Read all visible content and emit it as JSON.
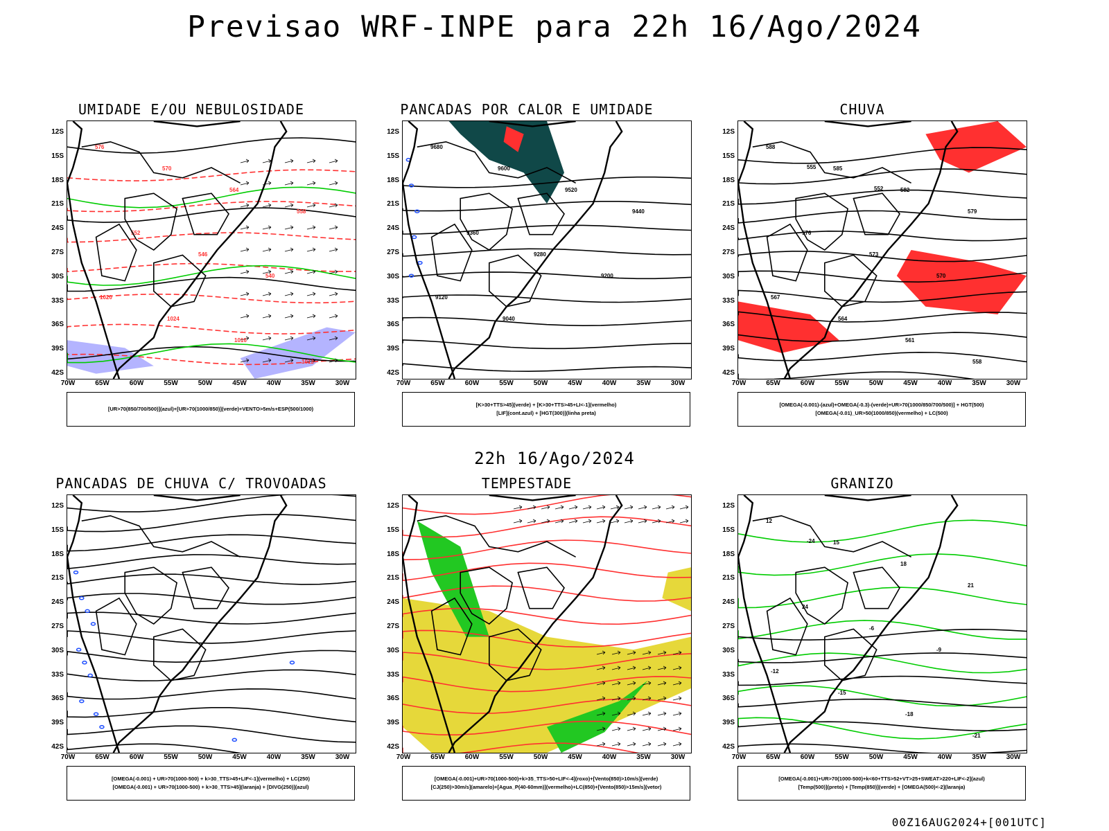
{
  "title": "Previsao WRF-INPE  para 22h 16/Ago/2024",
  "mid_label": "22h 16/Ago/2024",
  "footer": "00Z16AUG2024+[001UTC]",
  "lat_labels": [
    "12S",
    "15S",
    "18S",
    "21S",
    "24S",
    "27S",
    "30S",
    "33S",
    "36S",
    "39S",
    "42S"
  ],
  "lon_labels": [
    "70W",
    "65W",
    "60W",
    "55W",
    "50W",
    "45W",
    "40W",
    "35W",
    "30W"
  ],
  "colors": {
    "contour_red": "#ff3030",
    "contour_green": "#00cc00",
    "shade_blue": "#b4b4ff",
    "shade_dark": "#104848",
    "shade_yellow": "#e6d83a",
    "shade_green": "#22c822",
    "streamline": "#000000",
    "dot_blue": "#2050ff"
  },
  "panels": [
    {
      "title": "UMIDADE E/OU NEBULOSIDADE",
      "legend": [
        "[UR>70(850/700/500)](azul)+[UR>70(1000/850)](verde)+VENTO>5m/s+ESP(500/1000)"
      ],
      "contour_labels": [
        "576",
        "570",
        "564",
        "558",
        "552",
        "546",
        "540",
        "1020",
        "1024",
        "1016",
        "1012"
      ]
    },
    {
      "title": "PANCADAS POR CALOR E UMIDADE",
      "legend": [
        "[K>30+TTS>45](verde) + [K>30+TTS>45+LI<-1](vermelho)",
        "[LIF](cont.azul) + [HGT(300)](linha preta)"
      ],
      "contour_labels": [
        "9680",
        "9600",
        "9520",
        "9440",
        "9360",
        "9280",
        "9200",
        "9120",
        "9040"
      ]
    },
    {
      "title": "CHUVA",
      "legend": [
        "[OMEGA(-0.001)-(azul)+OMEGA(-0.3)-(verde)+UR>70(1000/850/700/500)] + HGT(500)",
        "[OMEGA(-0.01)_UR>50(1000/850)(vermelho) + LC(500)"
      ],
      "contour_labels": [
        "588",
        "585",
        "582",
        "579",
        "576",
        "573",
        "570",
        "567",
        "564",
        "561",
        "558",
        "555",
        "552"
      ]
    },
    {
      "title": "PANCADAS DE CHUVA C/ TROVOADAS",
      "legend": [
        "[OMEGA(-0.001) + UR>70(1000-500) + k>30_TTS>45+LIF<-1](vermelho) + LC(250)",
        "[OMEGA(-0.001) + UR>70(1000-500) + k>30_TTS>45](laranja) + [DIVG(250)](azul)"
      ],
      "contour_labels": []
    },
    {
      "title": "TEMPESTADE",
      "legend": [
        "[OMEGA(-0.001)+UR>70(1000-500)+k>35_TTS>50+LIF<-4](roxo)+[Vento(850)>10m/s](verde)",
        "[CJ(250)>30m/s](amarelo)+[Agua_P(40-60mm)](vermelho)+LC(850)+[Vento(850)>15m/s](vetor)"
      ],
      "contour_labels": []
    },
    {
      "title": "GRANIZO",
      "legend": [
        "[OMEGA(-0.001)+UR>70(1000-500)+k<60+TTS>52+VT>25+SWEAT>220+LIF<-2](azul)",
        "[Temp(500)](preto) + [Temp(850)](verde) + [OMEGA(500)<-2](laranja)"
      ],
      "contour_labels": [
        "12",
        "15",
        "18",
        "21",
        "24",
        "-6",
        "-9",
        "-12",
        "-15",
        "-18",
        "-21",
        "-24"
      ]
    }
  ]
}
